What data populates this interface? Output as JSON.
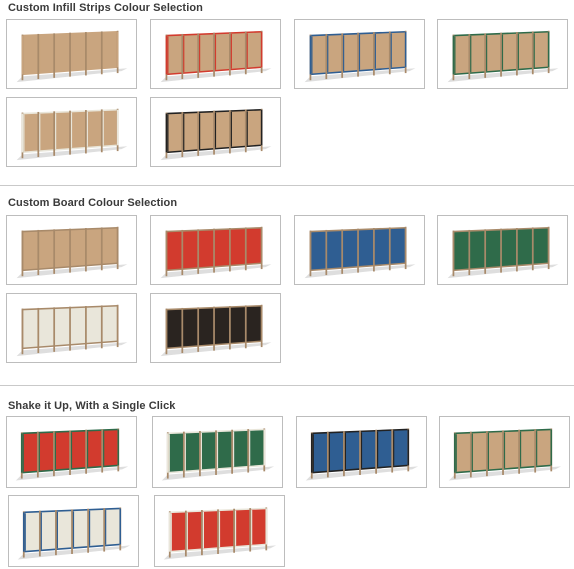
{
  "sections": [
    {
      "title": "Custom Infill Strips Colour Selection",
      "options": [
        {
          "mode": "strips",
          "frame": "#a88a6a",
          "board": "#c9a57f",
          "strip": "#c9a57f"
        },
        {
          "mode": "strips",
          "frame": "#a88a6a",
          "board": "#c9a57f",
          "strip": "#d23b2e"
        },
        {
          "mode": "strips",
          "frame": "#a88a6a",
          "board": "#c9a57f",
          "strip": "#2f5e92"
        },
        {
          "mode": "strips",
          "frame": "#a88a6a",
          "board": "#c9a57f",
          "strip": "#2f6b4a"
        },
        {
          "mode": "strips",
          "frame": "#a88a6a",
          "board": "#c9a57f",
          "strip": "#e9e6da"
        },
        {
          "mode": "strips",
          "frame": "#a88a6a",
          "board": "#c9a57f",
          "strip": "#222222"
        }
      ]
    },
    {
      "title": "Custom Board Colour Selection",
      "options": [
        {
          "mode": "board",
          "frame": "#a88a6a",
          "board": "#c9a57f",
          "strip": "#a88a6a"
        },
        {
          "mode": "board",
          "frame": "#a88a6a",
          "board": "#d23b2e",
          "strip": "#a88a6a"
        },
        {
          "mode": "board",
          "frame": "#a88a6a",
          "board": "#2f5e92",
          "strip": "#a88a6a"
        },
        {
          "mode": "board",
          "frame": "#a88a6a",
          "board": "#2f6b4a",
          "strip": "#a88a6a"
        },
        {
          "mode": "board",
          "frame": "#a88a6a",
          "board": "#e9e6da",
          "strip": "#a88a6a"
        },
        {
          "mode": "board",
          "frame": "#a88a6a",
          "board": "#2a2420",
          "strip": "#a88a6a"
        }
      ]
    },
    {
      "title": "Shake it Up, With a Single Click",
      "options": [
        {
          "mode": "mix",
          "frame": "#a88a6a",
          "board": "#d23b2e",
          "strip": "#2f6b4a"
        },
        {
          "mode": "mix",
          "frame": "#a88a6a",
          "board": "#2f6b4a",
          "strip": "#e9e6da"
        },
        {
          "mode": "mix",
          "frame": "#a88a6a",
          "board": "#2f5e92",
          "strip": "#222222"
        },
        {
          "mode": "mix",
          "frame": "#a88a6a",
          "board": "#c9a57f",
          "strip": "#2f6b4a"
        },
        {
          "mode": "mix",
          "frame": "#a88a6a",
          "board": "#e9e6da",
          "strip": "#2f5e92"
        },
        {
          "mode": "mix",
          "frame": "#a88a6a",
          "board": "#d23b2e",
          "strip": "#e9e6da"
        }
      ]
    }
  ]
}
